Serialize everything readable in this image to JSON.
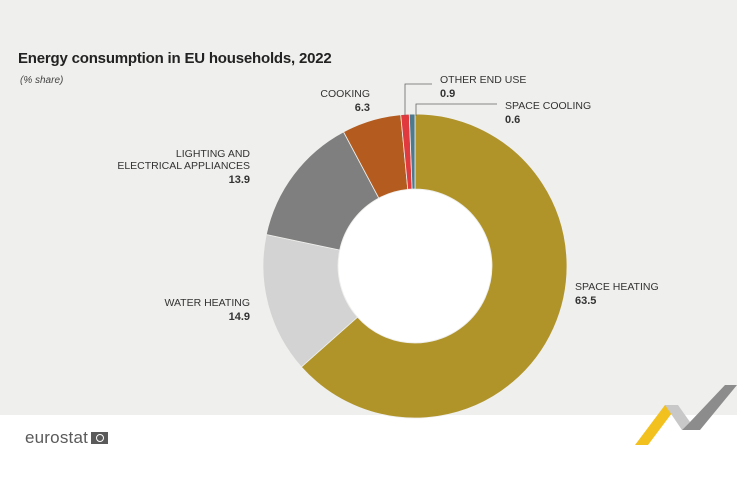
{
  "header": {
    "title": "Energy consumption in EU households, 2022",
    "subtitle": "(% share)"
  },
  "footer": {
    "logo_text": "eurostat"
  },
  "chart_data": {
    "type": "pie",
    "subtype": "donut",
    "title": "Energy consumption in EU households, 2022",
    "subtitle": "(% share)",
    "slices": [
      {
        "label": "SPACE HEATING",
        "label_lines": [
          "SPACE HEATING"
        ],
        "value": 63.5,
        "value_text": "63.5",
        "color": "#b0942a"
      },
      {
        "label": "WATER HEATING",
        "label_lines": [
          "WATER HEATING"
        ],
        "value": 14.9,
        "value_text": "14.9",
        "color": "#d3d3d3"
      },
      {
        "label": "LIGHTING AND ELECTRICAL APPLIANCES",
        "label_lines": [
          "LIGHTING AND",
          "ELECTRICAL APPLIANCES"
        ],
        "value": 13.9,
        "value_text": "13.9",
        "color": "#7f7f7f"
      },
      {
        "label": "COOKING",
        "label_lines": [
          "COOKING"
        ],
        "value": 6.3,
        "value_text": "6.3",
        "color": "#b45c20"
      },
      {
        "label": "OTHER END USE",
        "label_lines": [
          "OTHER END USE"
        ],
        "value": 0.9,
        "value_text": "0.9",
        "color": "#e0393e"
      },
      {
        "label": "SPACE COOLING",
        "label_lines": [
          "SPACE COOLING"
        ],
        "value": 0.6,
        "value_text": "0.6",
        "color": "#4e7a8c"
      }
    ],
    "start_angle_deg": 0,
    "direction": "counterclockwise",
    "legend": "none",
    "data_labels": "outside"
  }
}
